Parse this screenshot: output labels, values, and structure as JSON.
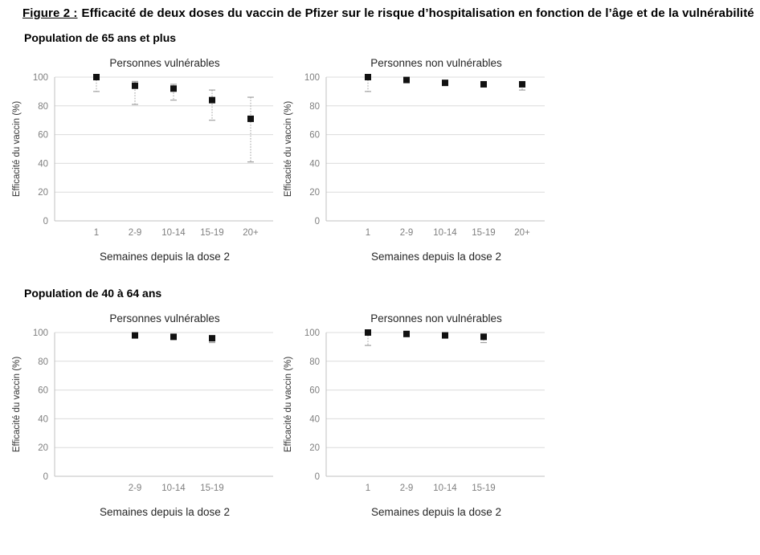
{
  "figure": {
    "label": "Figure 2 :",
    "title": "Efficacité de deux doses du vaccin de Pfizer sur le risque d’hospitalisation en fonction de l’âge et de la vulnérabilité"
  },
  "sections": [
    {
      "header": "Population de 65 ans et plus"
    },
    {
      "header": "Population de 40 à 64 ans"
    }
  ],
  "style": {
    "marker_color": "#111111",
    "errorbar_color": "#a0a0a0",
    "gridline_color": "#dcdcdc",
    "axis_line_color": "#c0c0c0",
    "tick_label_color": "#7f7f7f",
    "axis_title_color": "#333333"
  },
  "chart_data": [
    {
      "type": "scatter",
      "population": "65 ans et plus",
      "group": "vulnérables",
      "title": "Personnes vulnérables",
      "xlabel": "Semaines depuis la dose 2",
      "ylabel": "Efficacité  du vaccin  (%)",
      "categories": [
        "1",
        "2-9",
        "10-14",
        "15-19",
        "20+"
      ],
      "values": [
        100,
        94,
        92,
        84,
        71
      ],
      "ci_low": [
        90,
        81,
        84,
        70,
        41
      ],
      "ci_high": [
        100,
        97,
        95,
        91,
        86
      ],
      "marker": "square",
      "ylim": [
        0,
        100
      ],
      "yticks": [
        0,
        20,
        40,
        60,
        80,
        100
      ],
      "grid": true,
      "legend": "none"
    },
    {
      "type": "scatter",
      "population": "65 ans et plus",
      "group": "non vulnérables",
      "title": "Personnes non vulnérables",
      "xlabel": "Semaines depuis la dose 2",
      "ylabel": "Efficacité  du vaccin  (%)",
      "categories": [
        "1",
        "2-9",
        "10-14",
        "15-19",
        "20+"
      ],
      "values": [
        100,
        98,
        96,
        95,
        95
      ],
      "ci_low": [
        90,
        97,
        95,
        94,
        91
      ],
      "ci_high": [
        100,
        99,
        97,
        96,
        96
      ],
      "marker": "square",
      "ylim": [
        0,
        100
      ],
      "yticks": [
        0,
        20,
        40,
        60,
        80,
        100
      ],
      "grid": true,
      "legend": "none"
    },
    {
      "type": "scatter",
      "population": "40 à 64 ans",
      "group": "vulnérables",
      "title": "Personnes vulnérables",
      "xlabel": "Semaines depuis la dose 2",
      "ylabel": "Efficacité du vaccin (%)",
      "categories": [
        "2-9",
        "10-14",
        "15-19"
      ],
      "values": [
        98,
        97,
        96
      ],
      "ci_low": [
        97,
        96,
        93
      ],
      "ci_high": [
        99,
        98,
        97
      ],
      "marker": "square",
      "ylim": [
        0,
        100
      ],
      "yticks": [
        0,
        20,
        40,
        60,
        80,
        100
      ],
      "grid": true,
      "legend": "none"
    },
    {
      "type": "scatter",
      "population": "40 à 64 ans",
      "group": "non vulnérables",
      "title": "Personnes non vulnérables",
      "xlabel": "Semaines depuis la dose 2",
      "ylabel": "Efficacité du vaccin (%)",
      "categories": [
        "1",
        "2-9",
        "10-14",
        "15-19"
      ],
      "values": [
        100,
        99,
        98,
        97
      ],
      "ci_low": [
        91,
        98,
        97,
        93
      ],
      "ci_high": [
        100,
        100,
        99,
        99
      ],
      "marker": "square",
      "ylim": [
        0,
        100
      ],
      "yticks": [
        0,
        20,
        40,
        60,
        80,
        100
      ],
      "grid": true,
      "legend": "none"
    }
  ]
}
